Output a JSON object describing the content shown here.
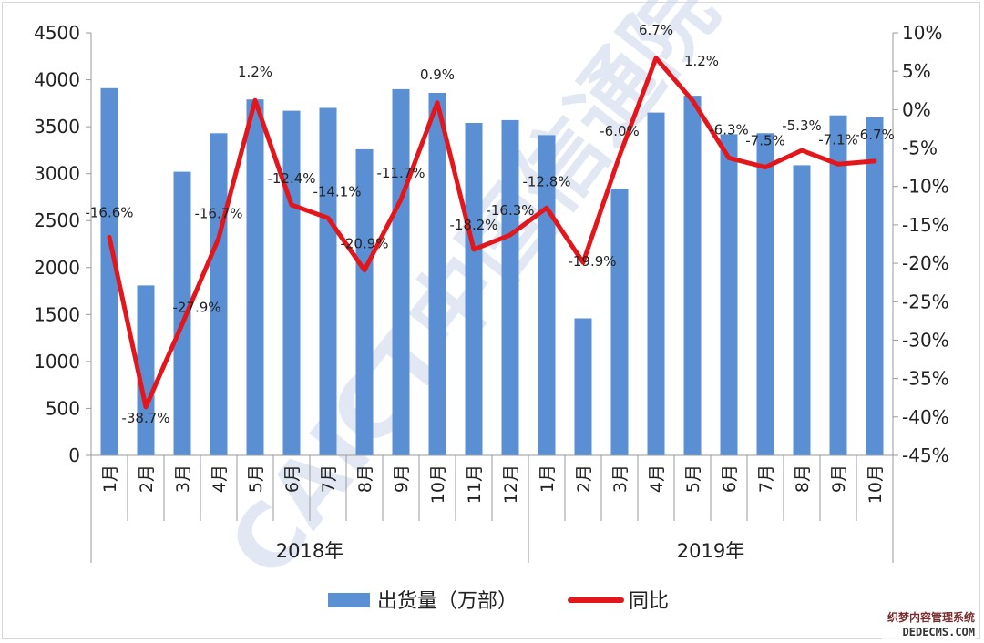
{
  "chart_data": {
    "type": "bar",
    "categories": [
      "1月",
      "2月",
      "3月",
      "4月",
      "5月",
      "6月",
      "7月",
      "8月",
      "9月",
      "10月",
      "11月",
      "12月",
      "1月",
      "2月",
      "3月",
      "4月",
      "5月",
      "6月",
      "7月",
      "8月",
      "9月",
      "10月"
    ],
    "groups": [
      {
        "label": "2018年",
        "count": 12
      },
      {
        "label": "2019年",
        "count": 10
      }
    ],
    "series": [
      {
        "name": "出货量（万部）",
        "type": "bar",
        "axis": "left",
        "color": "#5b8fd4",
        "values": [
          3910,
          1810,
          3020,
          3430,
          3790,
          3670,
          3700,
          3260,
          3900,
          3860,
          3540,
          3570,
          3410,
          1460,
          2840,
          3650,
          3830,
          3420,
          3430,
          3090,
          3620,
          3600
        ]
      },
      {
        "name": "同比",
        "type": "line",
        "axis": "right",
        "color": "#e3161b",
        "values": [
          -16.6,
          -38.7,
          -27.9,
          -16.7,
          1.2,
          -12.4,
          -14.1,
          -20.9,
          -11.7,
          0.9,
          -18.2,
          -16.3,
          -12.8,
          -19.9,
          -6.0,
          6.7,
          1.2,
          -6.3,
          -7.5,
          -5.3,
          -7.1,
          -6.7
        ],
        "labels": [
          "-16.6%",
          "-38.7%",
          "-27.9%",
          "-16.7%",
          "1.2%",
          "-12.4%",
          "-14.1%",
          "-20.9%",
          "-11.7%",
          "0.9%",
          "-18.2%",
          "-16.3%",
          "-12.8%",
          "-19.9%",
          "-6.0%",
          "6.7%",
          "1.2%",
          "-6.3%",
          "-7.5%",
          "-5.3%",
          "-7.1%",
          "-6.7%"
        ]
      }
    ],
    "ylim": [
      0,
      4500
    ],
    "yticks": [
      "0",
      "500",
      "1000",
      "1500",
      "2000",
      "2500",
      "3000",
      "3500",
      "4000",
      "4500"
    ],
    "y2lim": [
      -45,
      10
    ],
    "y2ticks": [
      "-45%",
      "-40%",
      "-35%",
      "-30%",
      "-25%",
      "-20%",
      "-15%",
      "-10%",
      "-5%",
      "0%",
      "5%",
      "10%"
    ],
    "legend_position": "bottom",
    "grid": false
  },
  "watermark": {
    "text": "CAICT中国信通院",
    "site_cn": "织梦内容管理系统",
    "site_en": "DEDECMS.COM"
  }
}
